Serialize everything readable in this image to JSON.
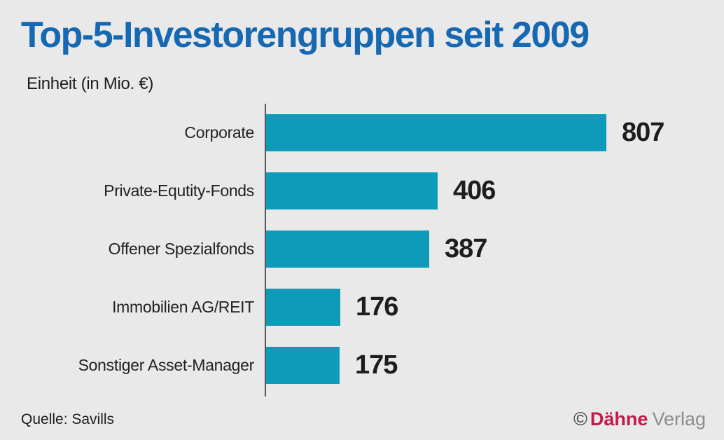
{
  "header": {
    "title": "Top-5-Investorengruppen seit 2009",
    "unit_label": "Einheit (in Mio. €)"
  },
  "chart_data": {
    "type": "bar",
    "orientation": "horizontal",
    "title": "Top-5-Investorengruppen seit 2009",
    "xlabel": "",
    "ylabel": "",
    "unit": "Mio. €",
    "categories": [
      "Corporate",
      "Private-Equtity-Fonds",
      "Offener Spezialfonds",
      "Immobilien AG/REIT",
      "Sonstiger Asset-Manager"
    ],
    "values": [
      807,
      406,
      387,
      176,
      175
    ],
    "xlim": [
      0,
      860
    ],
    "grid": false,
    "legend": false,
    "bar_color": "#0d9bb9"
  },
  "footer": {
    "source": "Quelle: Savills",
    "publisher": {
      "copyright": "©",
      "name": "Dähne",
      "suffix": "Verlag"
    }
  },
  "colors": {
    "background": "#e9e9e9",
    "title_blue": "#1568b1",
    "bar_teal": "#0d9bb9",
    "axis_gray": "#58585b",
    "text_black": "#1d1d1d",
    "publisher_red": "#c31a4a",
    "publisher_gray": "#8d8d8d"
  }
}
